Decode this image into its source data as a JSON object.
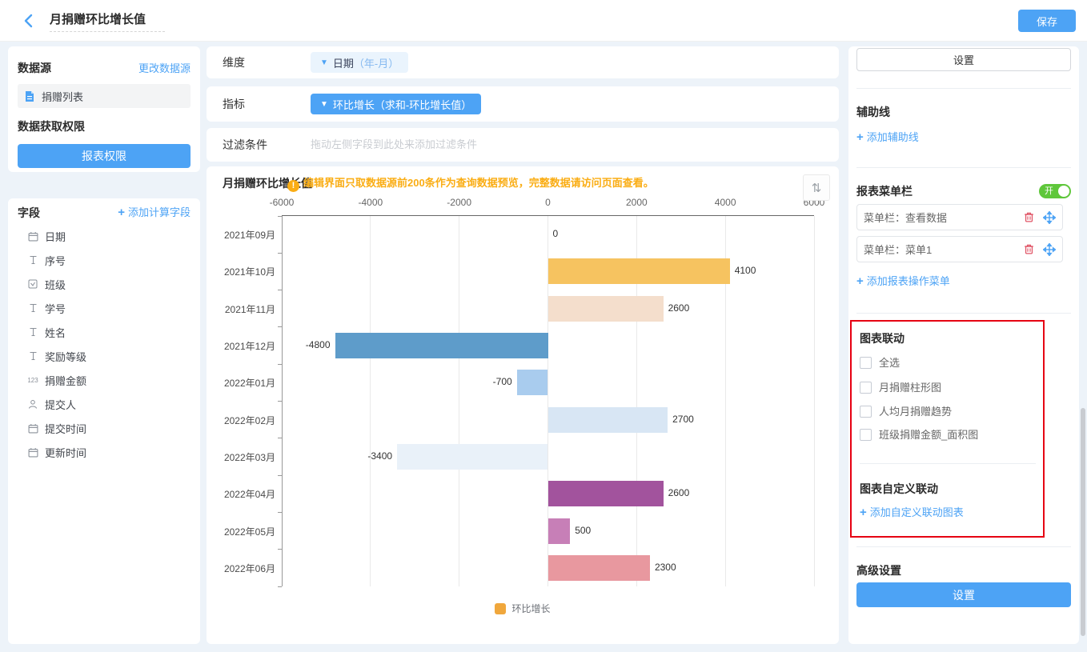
{
  "topbar": {
    "title": "月捐赠环比增长值",
    "save_label": "保存"
  },
  "datasource_panel": {
    "title": "数据源",
    "change_link": "更改数据源",
    "source_name": "捐赠列表",
    "permission_title": "数据获取权限",
    "permission_button": "报表权限"
  },
  "fields_panel": {
    "title": "字段",
    "add_link": "添加计算字段",
    "fields": [
      {
        "icon": "calendar-icon",
        "label": "日期"
      },
      {
        "icon": "text-icon",
        "label": "序号"
      },
      {
        "icon": "select-icon",
        "label": "班级"
      },
      {
        "icon": "text-icon",
        "label": "学号"
      },
      {
        "icon": "text-icon",
        "label": "姓名"
      },
      {
        "icon": "text-icon",
        "label": "奖励等级"
      },
      {
        "icon": "number-icon",
        "label": "捐赠金额"
      },
      {
        "icon": "person-icon",
        "label": "提交人"
      },
      {
        "icon": "calendar-icon",
        "label": "提交时间"
      },
      {
        "icon": "calendar-icon",
        "label": "更新时间"
      }
    ]
  },
  "config_rows": {
    "dimension_label": "维度",
    "dimension_tag_name": "日期",
    "dimension_tag_suffix": "（年-月）",
    "metric_label": "指标",
    "metric_tag": "环比增长（求和-环比增长值）",
    "filter_label": "过滤条件",
    "filter_placeholder": "拖动左侧字段到此处来添加过滤条件"
  },
  "chart_card": {
    "title": "月捐赠环比增长值",
    "warning_mark": "!",
    "notice": "编辑界面只取数据源前200条作为查询数据预览，完整数据请访问页面查看。",
    "sort_icon": "⇅"
  },
  "chart_data": {
    "type": "bar",
    "orientation": "horizontal",
    "title": "月捐赠环比增长值",
    "categories": [
      "2021年09月",
      "2021年10月",
      "2021年11月",
      "2021年12月",
      "2022年01月",
      "2022年02月",
      "2022年03月",
      "2022年04月",
      "2022年05月",
      "2022年06月"
    ],
    "values": [
      0,
      4100,
      2600,
      -4800,
      -700,
      2700,
      -3400,
      2600,
      500,
      2300
    ],
    "bar_colors": [
      "#F6C360",
      "#F6C360",
      "#F4DECC",
      "#5E9CCA",
      "#A9CCEE",
      "#D8E6F4",
      "#E9F1F9",
      "#A2539D",
      "#C77FB7",
      "#E8989F"
    ],
    "xlim": [
      -6000,
      6000
    ],
    "x_ticks": [
      -6000,
      -4000,
      -2000,
      0,
      2000,
      4000,
      6000
    ],
    "grid": true,
    "legend": [
      {
        "label": "环比增长",
        "color": "#F0A73C"
      }
    ],
    "legend_position": "bottom"
  },
  "settings_panel": {
    "settings_button": "设置",
    "aux_line": {
      "title": "辅助线",
      "add_link": "添加辅助线"
    },
    "menu_bar": {
      "title": "报表菜单栏",
      "toggle_label": "开",
      "toggle_on": true,
      "items": [
        {
          "label": "菜单栏：查看数据"
        },
        {
          "label": "菜单栏：菜单1"
        }
      ],
      "add_link": "添加报表操作菜单"
    },
    "linkage": {
      "title": "图表联动",
      "select_all": "全选",
      "options": [
        "月捐赠柱形图",
        "人均月捐赠趋势",
        "班级捐赠金额_面积图"
      ]
    },
    "custom_linkage": {
      "title": "图表自定义联动",
      "add_link": "添加自定义联动图表"
    },
    "advanced": {
      "title": "高级设置",
      "button": "设置"
    }
  },
  "colors": {
    "accent": "#4DA3F5",
    "warning": "#FAAD14",
    "toggle_on_green": "#5FC73B",
    "danger": "#E05667",
    "highlight_border": "#E60012"
  }
}
